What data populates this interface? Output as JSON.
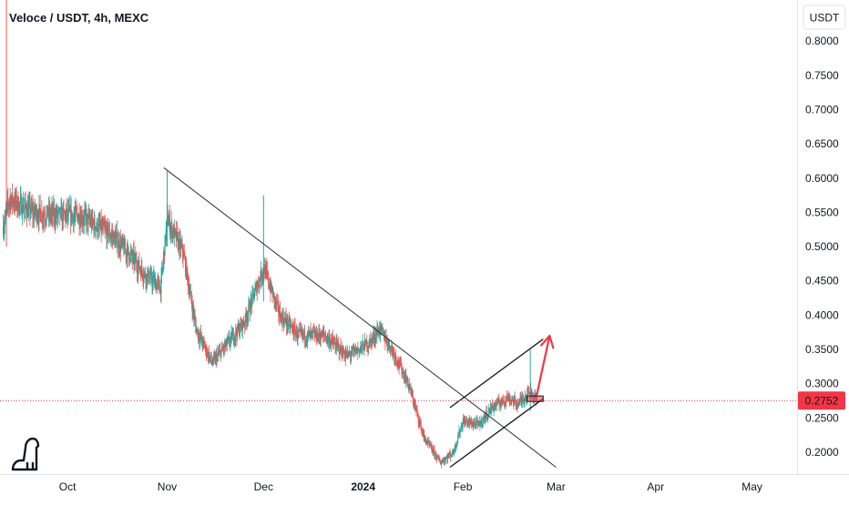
{
  "header": {
    "title": "Veloce / USDT, 4h, MEXC",
    "currency_button": "USDT"
  },
  "colors": {
    "up": "#26a69a",
    "down": "#ef5350",
    "trendline": "#2a2e39",
    "arrow": "#f23645",
    "price_line": "#f23645",
    "price_tag_bg": "#f23645"
  },
  "icons": {
    "logo": "tradingview-dino-icon"
  },
  "chart_data": {
    "type": "candlestick",
    "title": "Veloce / USDT, 4h, MEXC",
    "ylim": [
      0.168,
      0.86
    ],
    "y_ticks": [
      "0.8000",
      "0.7500",
      "0.7000",
      "0.6500",
      "0.6000",
      "0.5500",
      "0.5000",
      "0.4500",
      "0.4000",
      "0.3500",
      "0.3000",
      "0.2500",
      "0.2000"
    ],
    "x_ticks": [
      {
        "label": "Oct",
        "date": "2023-10-01"
      },
      {
        "label": "Nov",
        "date": "2023-11-01"
      },
      {
        "label": "Dec",
        "date": "2023-12-01"
      },
      {
        "label": "2024",
        "date": "2024-01-01",
        "bold": true
      },
      {
        "label": "Feb",
        "date": "2024-02-01"
      },
      {
        "label": "Mar",
        "date": "2024-03-01"
      },
      {
        "label": "Apr",
        "date": "2024-04-01"
      },
      {
        "label": "May",
        "date": "2024-05-01"
      }
    ],
    "xlim": [
      "2023-09-10",
      "2024-05-15"
    ],
    "last_price": "0.2752",
    "price_path": [
      {
        "date": "2023-09-11",
        "price": 0.53
      },
      {
        "date": "2023-09-13",
        "price": 0.57
      },
      {
        "date": "2023-09-20",
        "price": 0.55
      },
      {
        "date": "2023-09-28",
        "price": 0.545
      },
      {
        "date": "2023-10-05",
        "price": 0.545
      },
      {
        "date": "2023-10-15",
        "price": 0.515
      },
      {
        "date": "2023-10-20",
        "price": 0.49
      },
      {
        "date": "2023-10-25",
        "price": 0.46
      },
      {
        "date": "2023-10-30",
        "price": 0.44
      },
      {
        "date": "2023-11-01",
        "price": 0.54
      },
      {
        "date": "2023-11-06",
        "price": 0.49
      },
      {
        "date": "2023-11-10",
        "price": 0.38
      },
      {
        "date": "2023-11-15",
        "price": 0.33
      },
      {
        "date": "2023-11-20",
        "price": 0.36
      },
      {
        "date": "2023-11-25",
        "price": 0.39
      },
      {
        "date": "2023-12-01",
        "price": 0.47
      },
      {
        "date": "2023-12-06",
        "price": 0.4
      },
      {
        "date": "2023-12-12",
        "price": 0.37
      },
      {
        "date": "2023-12-20",
        "price": 0.37
      },
      {
        "date": "2023-12-27",
        "price": 0.34
      },
      {
        "date": "2024-01-03",
        "price": 0.36
      },
      {
        "date": "2024-01-06",
        "price": 0.38
      },
      {
        "date": "2024-01-10",
        "price": 0.35
      },
      {
        "date": "2024-01-15",
        "price": 0.3
      },
      {
        "date": "2024-01-20",
        "price": 0.22
      },
      {
        "date": "2024-01-25",
        "price": 0.185
      },
      {
        "date": "2024-01-29",
        "price": 0.2
      },
      {
        "date": "2024-02-01",
        "price": 0.245
      },
      {
        "date": "2024-02-06",
        "price": 0.24
      },
      {
        "date": "2024-02-10",
        "price": 0.265
      },
      {
        "date": "2024-02-15",
        "price": 0.28
      },
      {
        "date": "2024-02-18",
        "price": 0.27
      },
      {
        "date": "2024-02-22",
        "price": 0.29
      },
      {
        "date": "2024-02-24",
        "price": 0.2752
      }
    ],
    "wick_spikes": [
      {
        "date": "2023-09-12",
        "high": 0.86,
        "low": 0.5
      },
      {
        "date": "2023-11-01",
        "high": 0.61,
        "low": 0.5
      },
      {
        "date": "2023-12-01",
        "high": 0.575,
        "low": 0.42
      },
      {
        "date": "2024-02-22",
        "high": 0.35,
        "low": 0.26
      }
    ],
    "drawings": {
      "downtrend_line": [
        {
          "date": "2023-10-31",
          "price": 0.615
        },
        {
          "date": "2024-03-01",
          "price": 0.178
        }
      ],
      "channel_upper": [
        {
          "date": "2024-01-28",
          "price": 0.265
        },
        {
          "date": "2024-02-26",
          "price": 0.365
        }
      ],
      "channel_lower": [
        {
          "date": "2024-01-28",
          "price": 0.178
        },
        {
          "date": "2024-02-26",
          "price": 0.278
        }
      ],
      "projection_arrow": [
        {
          "date": "2024-02-24",
          "price": 0.283
        },
        {
          "date": "2024-02-28",
          "price": 0.37
        }
      ],
      "price_box": [
        {
          "date": "2024-02-21",
          "price": 0.282
        },
        {
          "date": "2024-02-26",
          "price": 0.274
        }
      ]
    }
  }
}
